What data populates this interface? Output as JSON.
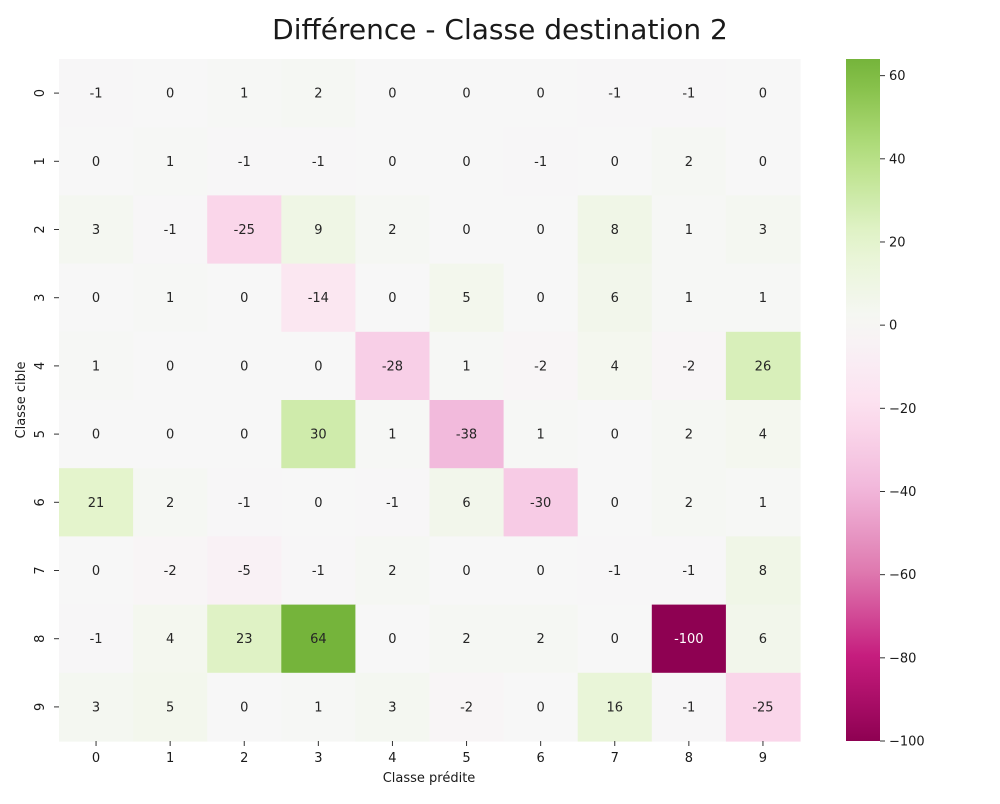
{
  "chart_data": {
    "type": "heatmap",
    "title": "Différence - Classe destination 2",
    "xlabel": "Classe prédite",
    "ylabel": "Classe cible",
    "x_categories": [
      "0",
      "1",
      "2",
      "3",
      "4",
      "5",
      "6",
      "7",
      "8",
      "9"
    ],
    "y_categories": [
      "0",
      "1",
      "2",
      "3",
      "4",
      "5",
      "6",
      "7",
      "8",
      "9"
    ],
    "values": [
      [
        -1,
        0,
        1,
        2,
        0,
        0,
        0,
        -1,
        -1,
        0
      ],
      [
        0,
        1,
        -1,
        -1,
        0,
        0,
        -1,
        0,
        2,
        0
      ],
      [
        3,
        -1,
        -25,
        9,
        2,
        0,
        0,
        8,
        1,
        3
      ],
      [
        0,
        1,
        0,
        -14,
        0,
        5,
        0,
        6,
        1,
        1
      ],
      [
        1,
        0,
        0,
        0,
        -28,
        1,
        -2,
        4,
        -2,
        26
      ],
      [
        0,
        0,
        0,
        30,
        1,
        -38,
        1,
        0,
        2,
        4
      ],
      [
        21,
        2,
        -1,
        0,
        -1,
        6,
        -30,
        0,
        2,
        1
      ],
      [
        0,
        -2,
        -5,
        -1,
        2,
        0,
        0,
        -1,
        -1,
        8
      ],
      [
        -1,
        4,
        23,
        64,
        0,
        2,
        2,
        0,
        -100,
        6
      ],
      [
        3,
        5,
        0,
        1,
        3,
        -2,
        0,
        16,
        -1,
        -25
      ]
    ],
    "vmin": -100,
    "vmax": 64,
    "center": 0,
    "colormap": "PiYG",
    "colorbar_ticks": [
      -100,
      -80,
      -60,
      -40,
      -20,
      0,
      20,
      40,
      60
    ],
    "colorbar_tick_labels": [
      "−100",
      "−80",
      "−60",
      "−40",
      "−20",
      "0",
      "20",
      "40",
      "60"
    ],
    "colorbar_position": "right",
    "grid": false,
    "annotations": true
  }
}
